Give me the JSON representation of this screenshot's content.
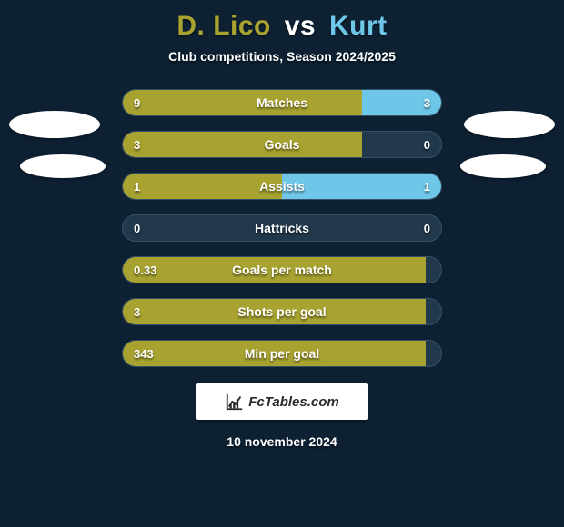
{
  "title": {
    "player1": "D. Lico",
    "vs": "vs",
    "player2": "Kurt"
  },
  "subtitle": "Club competitions, Season 2024/2025",
  "colors": {
    "player1": "#a8a330",
    "player2": "#6ec6e8",
    "background": "#0d2133",
    "bar_track": "#21384d"
  },
  "rows": [
    {
      "label": "Matches",
      "left": "9",
      "right": "3",
      "leftPct": 75,
      "rightPct": 25
    },
    {
      "label": "Goals",
      "left": "3",
      "right": "0",
      "leftPct": 75,
      "rightPct": 0
    },
    {
      "label": "Assists",
      "left": "1",
      "right": "1",
      "leftPct": 50,
      "rightPct": 50
    },
    {
      "label": "Hattricks",
      "left": "0",
      "right": "0",
      "leftPct": 0,
      "rightPct": 0
    },
    {
      "label": "Goals per match",
      "left": "0.33",
      "right": "",
      "leftPct": 95,
      "rightPct": 0
    },
    {
      "label": "Shots per goal",
      "left": "3",
      "right": "",
      "leftPct": 95,
      "rightPct": 0
    },
    {
      "label": "Min per goal",
      "left": "343",
      "right": "",
      "leftPct": 95,
      "rightPct": 0
    }
  ],
  "watermark": "FcTables.com",
  "date": "10 november 2024"
}
